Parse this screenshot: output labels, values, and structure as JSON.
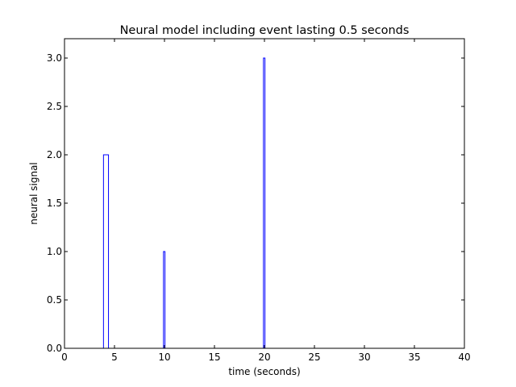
{
  "chart_data": {
    "type": "line",
    "title": "Neural model including event lasting 0.5 seconds",
    "xlabel": "time (seconds)",
    "ylabel": "neural signal",
    "xlim": [
      0,
      40
    ],
    "ylim": [
      0,
      3.2
    ],
    "x_ticks": [
      0,
      5,
      10,
      15,
      20,
      25,
      30,
      35,
      40
    ],
    "x_tick_labels": [
      "0",
      "5",
      "10",
      "15",
      "20",
      "25",
      "30",
      "35",
      "40"
    ],
    "y_ticks": [
      0,
      0.5,
      1.0,
      1.5,
      2.0,
      2.5,
      3.0
    ],
    "y_tick_labels": [
      "0.0",
      "0.5",
      "1.0",
      "1.5",
      "2.0",
      "2.5",
      "3.0"
    ],
    "grid": false,
    "series": [
      {
        "color": "#0000ff",
        "x": [
          0,
          3.9,
          3.9,
          4.4,
          4.4,
          9.9,
          9.9,
          10.05,
          10.05,
          19.9,
          19.9,
          20.05,
          20.05,
          40
        ],
        "y": [
          0,
          0,
          2.0,
          2.0,
          0,
          0,
          1.0,
          1.0,
          0,
          0,
          3.0,
          3.0,
          0,
          0
        ]
      }
    ]
  }
}
